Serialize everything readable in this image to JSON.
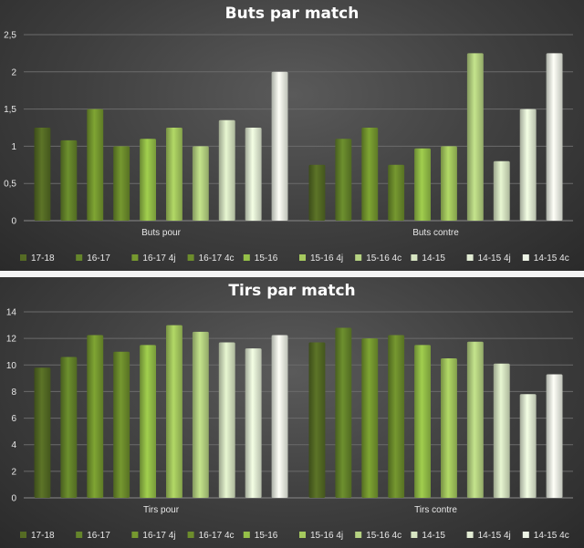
{
  "chart_data": [
    {
      "type": "bar",
      "title": "Buts par match",
      "categories": [
        "Buts pour",
        "Buts contre"
      ],
      "yticks": [
        "0",
        "0,5",
        "1",
        "1,5",
        "2",
        "2,5"
      ],
      "ylim": [
        0,
        2.5
      ],
      "grid": true,
      "legend_position": "bottom",
      "series": [
        {
          "name": "17-18",
          "color": "#556b24",
          "values": [
            1.25,
            0.75
          ]
        },
        {
          "name": "16-17",
          "color": "#65852b",
          "values": [
            1.08,
            1.1
          ]
        },
        {
          "name": "16-17 4j",
          "color": "#76992f",
          "values": [
            1.5,
            1.25
          ]
        },
        {
          "name": "16-17 4c",
          "color": "#6d8d2c",
          "values": [
            1.0,
            0.75
          ]
        },
        {
          "name": "15-16",
          "color": "#95c048",
          "values": [
            1.1,
            0.97
          ]
        },
        {
          "name": "15-16 4j",
          "color": "#a5c95e",
          "values": [
            1.25,
            1.0
          ]
        },
        {
          "name": "15-16 4c",
          "color": "#b6d382",
          "values": [
            1.0,
            2.25
          ]
        },
        {
          "name": "14-15",
          "color": "#d7e5c2",
          "values": [
            1.35,
            0.8
          ]
        },
        {
          "name": "14-15 4j",
          "color": "#e2ecd4",
          "values": [
            1.25,
            1.5
          ]
        },
        {
          "name": "14-15 4c",
          "color": "#edf3e6",
          "values": [
            2.0,
            2.25
          ]
        }
      ]
    },
    {
      "type": "bar",
      "title": "Tirs par match",
      "categories": [
        "Tirs pour",
        "Tirs contre"
      ],
      "yticks": [
        "0",
        "2",
        "4",
        "6",
        "8",
        "10",
        "12",
        "14"
      ],
      "ylim": [
        0,
        14
      ],
      "grid": true,
      "legend_position": "bottom",
      "series": [
        {
          "name": "17-18",
          "color": "#556b24",
          "values": [
            9.8,
            11.7
          ]
        },
        {
          "name": "16-17",
          "color": "#65852b",
          "values": [
            10.6,
            12.8
          ]
        },
        {
          "name": "16-17 4j",
          "color": "#76992f",
          "values": [
            12.25,
            12.0
          ]
        },
        {
          "name": "16-17 4c",
          "color": "#6d8d2c",
          "values": [
            11.0,
            12.25
          ]
        },
        {
          "name": "15-16",
          "color": "#95c048",
          "values": [
            11.5,
            11.5
          ]
        },
        {
          "name": "15-16 4j",
          "color": "#a5c95e",
          "values": [
            13.0,
            10.5
          ]
        },
        {
          "name": "15-16 4c",
          "color": "#b6d382",
          "values": [
            12.5,
            11.75
          ]
        },
        {
          "name": "14-15",
          "color": "#d7e5c2",
          "values": [
            11.7,
            10.1
          ]
        },
        {
          "name": "14-15 4j",
          "color": "#e2ecd4",
          "values": [
            11.25,
            7.8
          ]
        },
        {
          "name": "14-15 4c",
          "color": "#edf3e6",
          "values": [
            12.25,
            9.3
          ]
        }
      ]
    }
  ]
}
